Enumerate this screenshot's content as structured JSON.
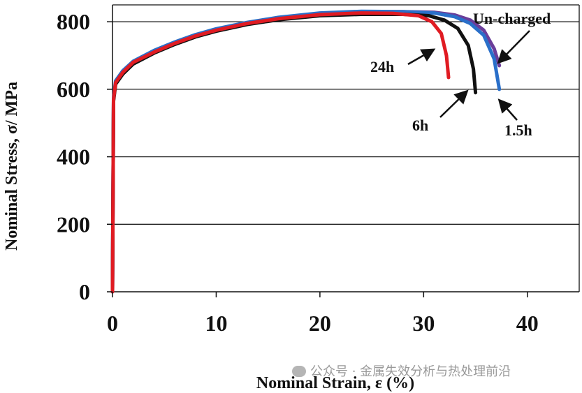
{
  "chart_data": {
    "type": "line",
    "title": "",
    "xlabel": "Nominal Strain, ε (%)",
    "ylabel": "Nominal Stress, σ/ MPa",
    "xlim": [
      0,
      45
    ],
    "ylim": [
      0,
      850
    ],
    "xticks": [
      "0",
      "10",
      "20",
      "30",
      "40"
    ],
    "yticks": [
      "0",
      "200",
      "400",
      "600",
      "800"
    ],
    "grid": "horizontal",
    "legend": "none",
    "series": [
      {
        "name": "Un-charged",
        "color": "#6a3d9a",
        "x": [
          0,
          0.1,
          0.3,
          1,
          2,
          4,
          6,
          8,
          10,
          13,
          16,
          20,
          24,
          28,
          31,
          33,
          34.5,
          35.8,
          36.8,
          37.3
        ],
        "y": [
          0,
          570,
          620,
          650,
          680,
          712,
          738,
          760,
          777,
          797,
          812,
          825,
          830,
          830,
          828,
          820,
          805,
          775,
          720,
          670
        ]
      },
      {
        "name": "1.5h",
        "color": "#2a6fc9",
        "x": [
          0,
          0.1,
          0.3,
          1,
          2,
          4,
          6,
          8,
          10,
          13,
          16,
          20,
          24,
          28,
          31,
          33,
          34.5,
          35.8,
          36.8,
          37.3
        ],
        "y": [
          0,
          575,
          625,
          655,
          683,
          715,
          740,
          762,
          779,
          798,
          813,
          826,
          831,
          830,
          826,
          815,
          795,
          760,
          690,
          600
        ]
      },
      {
        "name": "6h",
        "color": "#111111",
        "x": [
          0,
          0.1,
          0.3,
          1,
          2,
          4,
          6,
          8,
          10,
          13,
          16,
          20,
          24,
          28,
          30.5,
          32,
          33.3,
          34.3,
          34.8,
          35
        ],
        "y": [
          0,
          565,
          615,
          645,
          675,
          707,
          733,
          755,
          772,
          792,
          806,
          818,
          822,
          822,
          818,
          805,
          780,
          730,
          660,
          590
        ]
      },
      {
        "name": "24h",
        "color": "#e01b22",
        "x": [
          0,
          0.1,
          0.3,
          1,
          2,
          4,
          6,
          8,
          10,
          13,
          16,
          20,
          24,
          27,
          29.5,
          30.8,
          31.7,
          32.2,
          32.4
        ],
        "y": [
          0,
          570,
          620,
          650,
          680,
          710,
          736,
          758,
          775,
          795,
          809,
          821,
          826,
          825,
          818,
          800,
          765,
          700,
          635
        ]
      }
    ],
    "annotations": [
      "Un-charged",
      "24h",
      "6h",
      "1.5h"
    ]
  },
  "watermark": "公众号 · 金属失效分析与热处理前沿"
}
